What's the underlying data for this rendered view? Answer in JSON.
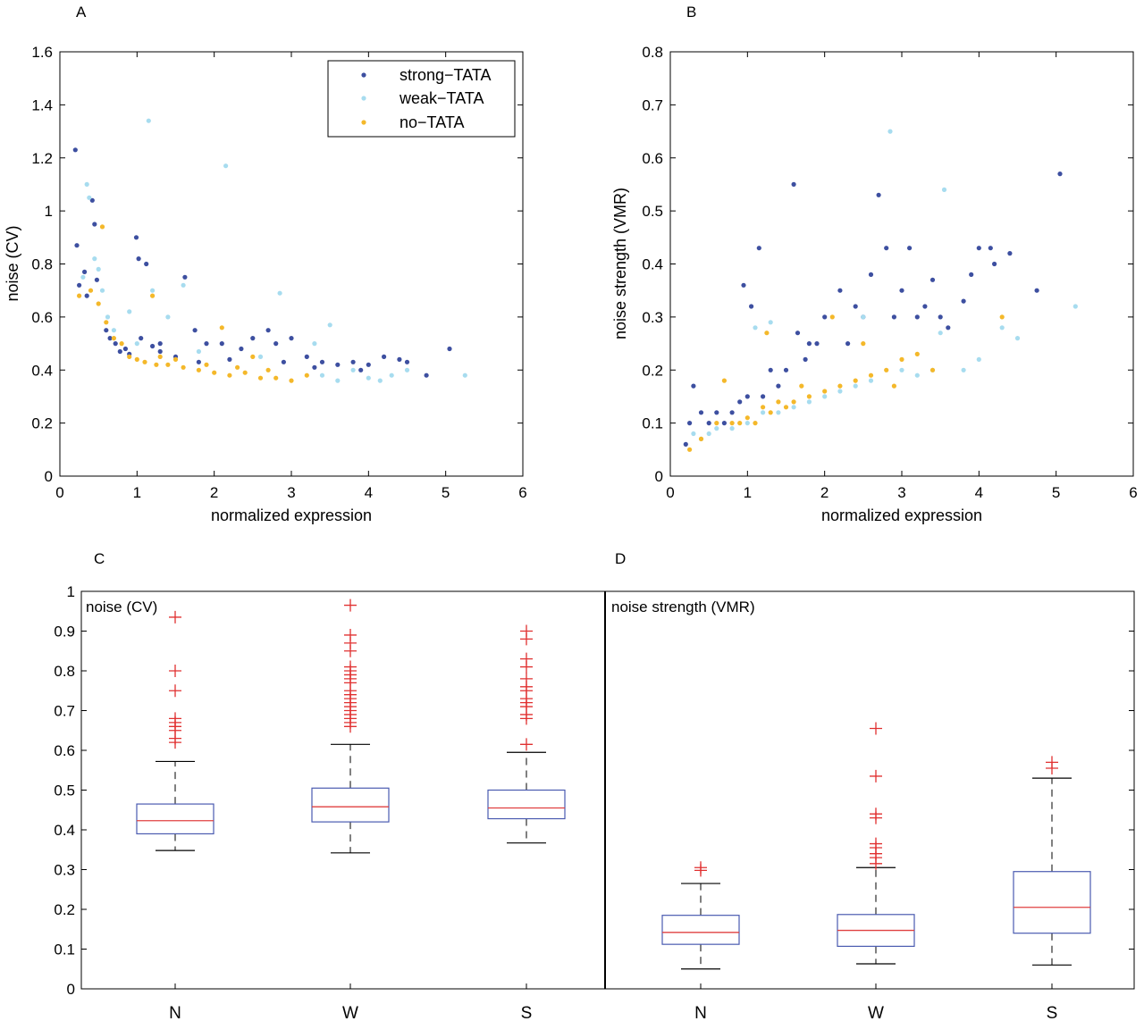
{
  "colors": {
    "strong": "#3d4fa0",
    "weak": "#a7dcef",
    "none": "#f4b82a",
    "box": "#4a5bb0",
    "median": "#e04040",
    "outlier": "#e03030",
    "whisker": "#000000"
  },
  "chart_data": [
    {
      "panel": "A",
      "type": "scatter",
      "xlabel": "normalized expression",
      "ylabel": "noise (CV)",
      "xlim": [
        0,
        6
      ],
      "ylim": [
        0,
        1.6
      ],
      "xticks": [
        "0",
        "1",
        "2",
        "3",
        "4",
        "5",
        "6"
      ],
      "yticks": [
        "0",
        "0.2",
        "0.4",
        "0.6",
        "0.8",
        "1",
        "1.2",
        "1.4",
        "1.6"
      ],
      "legend": {
        "position": "top-right",
        "entries": [
          "strong−TATA",
          "weak−TATA",
          "no−TATA"
        ]
      },
      "series": [
        {
          "name": "strong−TATA",
          "color_key": "strong",
          "points": [
            [
              0.2,
              1.23
            ],
            [
              0.22,
              0.87
            ],
            [
              0.25,
              0.72
            ],
            [
              0.32,
              0.77
            ],
            [
              0.35,
              0.68
            ],
            [
              0.42,
              1.04
            ],
            [
              0.45,
              0.95
            ],
            [
              0.48,
              0.74
            ],
            [
              0.6,
              0.55
            ],
            [
              0.65,
              0.52
            ],
            [
              0.72,
              0.5
            ],
            [
              0.78,
              0.47
            ],
            [
              0.85,
              0.48
            ],
            [
              0.9,
              0.46
            ],
            [
              0.99,
              0.9
            ],
            [
              1.02,
              0.82
            ],
            [
              1.12,
              0.8
            ],
            [
              1.05,
              0.52
            ],
            [
              1.2,
              0.49
            ],
            [
              1.3,
              0.47
            ],
            [
              1.5,
              0.45
            ],
            [
              1.62,
              0.75
            ],
            [
              1.75,
              0.55
            ],
            [
              1.9,
              0.5
            ],
            [
              2.1,
              0.5
            ],
            [
              2.35,
              0.48
            ],
            [
              2.5,
              0.52
            ],
            [
              2.7,
              0.55
            ],
            [
              2.8,
              0.5
            ],
            [
              3.0,
              0.52
            ],
            [
              3.2,
              0.45
            ],
            [
              3.4,
              0.43
            ],
            [
              3.6,
              0.42
            ],
            [
              3.8,
              0.43
            ],
            [
              4.0,
              0.42
            ],
            [
              4.2,
              0.45
            ],
            [
              4.4,
              0.44
            ],
            [
              4.5,
              0.43
            ],
            [
              4.75,
              0.38
            ],
            [
              5.05,
              0.48
            ],
            [
              1.3,
              0.5
            ],
            [
              1.8,
              0.43
            ],
            [
              2.2,
              0.44
            ],
            [
              2.9,
              0.43
            ],
            [
              3.3,
              0.41
            ],
            [
              3.9,
              0.4
            ]
          ]
        },
        {
          "name": "weak−TATA",
          "color_key": "weak",
          "points": [
            [
              0.3,
              0.75
            ],
            [
              0.35,
              1.1
            ],
            [
              0.38,
              1.05
            ],
            [
              0.45,
              0.82
            ],
            [
              0.5,
              0.78
            ],
            [
              0.55,
              0.7
            ],
            [
              0.62,
              0.6
            ],
            [
              0.7,
              0.55
            ],
            [
              0.9,
              0.62
            ],
            [
              1.15,
              1.34
            ],
            [
              1.2,
              0.7
            ],
            [
              1.4,
              0.6
            ],
            [
              1.6,
              0.72
            ],
            [
              2.15,
              1.17
            ],
            [
              2.85,
              0.69
            ],
            [
              3.5,
              0.57
            ],
            [
              3.3,
              0.5
            ],
            [
              3.4,
              0.38
            ],
            [
              3.6,
              0.36
            ],
            [
              4.0,
              0.37
            ],
            [
              4.3,
              0.38
            ],
            [
              4.5,
              0.4
            ],
            [
              5.25,
              0.38
            ],
            [
              1.0,
              0.5
            ],
            [
              1.8,
              0.47
            ],
            [
              2.6,
              0.45
            ],
            [
              3.8,
              0.4
            ],
            [
              4.15,
              0.36
            ]
          ]
        },
        {
          "name": "no−TATA",
          "color_key": "none",
          "points": [
            [
              0.25,
              0.68
            ],
            [
              0.4,
              0.7
            ],
            [
              0.5,
              0.65
            ],
            [
              0.55,
              0.94
            ],
            [
              0.6,
              0.58
            ],
            [
              0.7,
              0.52
            ],
            [
              0.8,
              0.5
            ],
            [
              0.9,
              0.45
            ],
            [
              1.0,
              0.44
            ],
            [
              1.1,
              0.43
            ],
            [
              1.2,
              0.68
            ],
            [
              1.25,
              0.42
            ],
            [
              1.4,
              0.42
            ],
            [
              1.6,
              0.41
            ],
            [
              1.8,
              0.4
            ],
            [
              2.0,
              0.39
            ],
            [
              2.2,
              0.38
            ],
            [
              2.4,
              0.39
            ],
            [
              2.6,
              0.37
            ],
            [
              2.8,
              0.37
            ],
            [
              3.0,
              0.36
            ],
            [
              3.2,
              0.38
            ],
            [
              2.1,
              0.56
            ],
            [
              2.5,
              0.45
            ],
            [
              1.9,
              0.42
            ],
            [
              1.5,
              0.44
            ],
            [
              1.3,
              0.45
            ],
            [
              2.7,
              0.4
            ],
            [
              2.3,
              0.41
            ]
          ]
        }
      ]
    },
    {
      "panel": "B",
      "type": "scatter",
      "xlabel": "normalized expression",
      "ylabel": "noise strength (VMR)",
      "xlim": [
        0,
        6
      ],
      "ylim": [
        0,
        0.8
      ],
      "xticks": [
        "0",
        "1",
        "2",
        "3",
        "4",
        "5",
        "6"
      ],
      "yticks": [
        "0",
        "0.1",
        "0.2",
        "0.3",
        "0.4",
        "0.5",
        "0.6",
        "0.7",
        "0.8"
      ],
      "series": [
        {
          "name": "strong−TATA",
          "color_key": "strong",
          "points": [
            [
              0.2,
              0.06
            ],
            [
              0.25,
              0.1
            ],
            [
              0.3,
              0.17
            ],
            [
              0.4,
              0.12
            ],
            [
              0.5,
              0.1
            ],
            [
              0.6,
              0.12
            ],
            [
              0.7,
              0.1
            ],
            [
              0.8,
              0.12
            ],
            [
              0.9,
              0.14
            ],
            [
              1.0,
              0.15
            ],
            [
              0.95,
              0.36
            ],
            [
              1.05,
              0.32
            ],
            [
              1.15,
              0.43
            ],
            [
              1.3,
              0.2
            ],
            [
              1.5,
              0.2
            ],
            [
              1.6,
              0.55
            ],
            [
              1.65,
              0.27
            ],
            [
              1.8,
              0.25
            ],
            [
              1.9,
              0.25
            ],
            [
              2.0,
              0.3
            ],
            [
              2.2,
              0.35
            ],
            [
              2.4,
              0.32
            ],
            [
              2.5,
              0.3
            ],
            [
              2.6,
              0.38
            ],
            [
              2.7,
              0.53
            ],
            [
              2.8,
              0.43
            ],
            [
              2.9,
              0.3
            ],
            [
              3.0,
              0.35
            ],
            [
              3.1,
              0.43
            ],
            [
              3.2,
              0.3
            ],
            [
              3.4,
              0.37
            ],
            [
              3.5,
              0.3
            ],
            [
              3.6,
              0.28
            ],
            [
              3.8,
              0.33
            ],
            [
              4.0,
              0.43
            ],
            [
              4.15,
              0.43
            ],
            [
              4.2,
              0.4
            ],
            [
              4.4,
              0.42
            ],
            [
              4.75,
              0.35
            ],
            [
              5.05,
              0.57
            ],
            [
              1.2,
              0.15
            ],
            [
              1.4,
              0.17
            ],
            [
              1.75,
              0.22
            ],
            [
              2.3,
              0.25
            ],
            [
              3.3,
              0.32
            ],
            [
              3.9,
              0.38
            ]
          ]
        },
        {
          "name": "weak−TATA",
          "color_key": "weak",
          "points": [
            [
              0.3,
              0.08
            ],
            [
              0.4,
              0.07
            ],
            [
              0.5,
              0.08
            ],
            [
              0.6,
              0.09
            ],
            [
              0.8,
              0.09
            ],
            [
              1.0,
              0.1
            ],
            [
              1.1,
              0.28
            ],
            [
              1.2,
              0.12
            ],
            [
              1.4,
              0.12
            ],
            [
              1.6,
              0.13
            ],
            [
              1.8,
              0.14
            ],
            [
              2.0,
              0.15
            ],
            [
              2.2,
              0.16
            ],
            [
              2.4,
              0.17
            ],
            [
              2.6,
              0.18
            ],
            [
              2.85,
              0.65
            ],
            [
              3.0,
              0.2
            ],
            [
              3.2,
              0.19
            ],
            [
              3.4,
              0.2
            ],
            [
              3.5,
              0.27
            ],
            [
              3.55,
              0.54
            ],
            [
              3.8,
              0.2
            ],
            [
              4.0,
              0.22
            ],
            [
              4.3,
              0.28
            ],
            [
              4.5,
              0.26
            ],
            [
              5.25,
              0.32
            ],
            [
              1.3,
              0.29
            ],
            [
              2.5,
              0.3
            ]
          ]
        },
        {
          "name": "no−TATA",
          "color_key": "none",
          "points": [
            [
              0.25,
              0.05
            ],
            [
              0.4,
              0.07
            ],
            [
              0.6,
              0.1
            ],
            [
              0.7,
              0.18
            ],
            [
              0.8,
              0.1
            ],
            [
              0.9,
              0.1
            ],
            [
              1.0,
              0.11
            ],
            [
              1.1,
              0.1
            ],
            [
              1.2,
              0.13
            ],
            [
              1.3,
              0.12
            ],
            [
              1.4,
              0.14
            ],
            [
              1.5,
              0.13
            ],
            [
              1.6,
              0.14
            ],
            [
              1.8,
              0.15
            ],
            [
              2.0,
              0.16
            ],
            [
              2.2,
              0.17
            ],
            [
              2.4,
              0.18
            ],
            [
              2.6,
              0.19
            ],
            [
              2.8,
              0.2
            ],
            [
              3.0,
              0.22
            ],
            [
              3.2,
              0.23
            ],
            [
              3.4,
              0.2
            ],
            [
              4.3,
              0.3
            ],
            [
              1.25,
              0.27
            ],
            [
              2.1,
              0.3
            ],
            [
              2.5,
              0.25
            ],
            [
              1.7,
              0.17
            ],
            [
              2.9,
              0.17
            ]
          ]
        }
      ]
    },
    {
      "panel": "C",
      "type": "boxplot",
      "inner_label": "noise (CV)",
      "categories": [
        "N",
        "W",
        "S"
      ],
      "ylim": [
        0,
        1
      ],
      "yticks": [
        "0",
        "0.1",
        "0.2",
        "0.3",
        "0.4",
        "0.5",
        "0.6",
        "0.7",
        "0.8",
        "0.9",
        "1"
      ],
      "boxes": [
        {
          "cat": "N",
          "q1": 0.39,
          "median": 0.423,
          "q3": 0.465,
          "whisker_low": 0.348,
          "whisker_high": 0.572,
          "outliers": [
            0.62,
            0.63,
            0.65,
            0.66,
            0.67,
            0.68,
            0.75,
            0.8,
            0.935
          ]
        },
        {
          "cat": "W",
          "q1": 0.42,
          "median": 0.458,
          "q3": 0.505,
          "whisker_low": 0.342,
          "whisker_high": 0.615,
          "outliers": [
            0.66,
            0.67,
            0.68,
            0.69,
            0.7,
            0.71,
            0.72,
            0.73,
            0.74,
            0.75,
            0.77,
            0.78,
            0.79,
            0.8,
            0.81,
            0.85,
            0.87,
            0.89,
            0.965
          ]
        },
        {
          "cat": "S",
          "q1": 0.428,
          "median": 0.455,
          "q3": 0.5,
          "whisker_low": 0.367,
          "whisker_high": 0.595,
          "outliers": [
            0.615,
            0.68,
            0.69,
            0.71,
            0.72,
            0.73,
            0.75,
            0.76,
            0.78,
            0.81,
            0.83,
            0.88,
            0.9
          ]
        }
      ]
    },
    {
      "panel": "D",
      "type": "boxplot",
      "inner_label": "noise strength (VMR)",
      "categories": [
        "N",
        "W",
        "S"
      ],
      "ylim": [
        0,
        1
      ],
      "boxes": [
        {
          "cat": "N",
          "q1": 0.112,
          "median": 0.142,
          "q3": 0.185,
          "whisker_low": 0.05,
          "whisker_high": 0.265,
          "outliers": [
            0.298,
            0.305
          ]
        },
        {
          "cat": "W",
          "q1": 0.107,
          "median": 0.147,
          "q3": 0.187,
          "whisker_low": 0.063,
          "whisker_high": 0.305,
          "outliers": [
            0.315,
            0.33,
            0.34,
            0.355,
            0.365,
            0.43,
            0.44,
            0.535,
            0.655
          ]
        },
        {
          "cat": "S",
          "q1": 0.14,
          "median": 0.205,
          "q3": 0.295,
          "whisker_low": 0.06,
          "whisker_high": 0.53,
          "outliers": [
            0.555,
            0.57
          ]
        }
      ]
    }
  ]
}
